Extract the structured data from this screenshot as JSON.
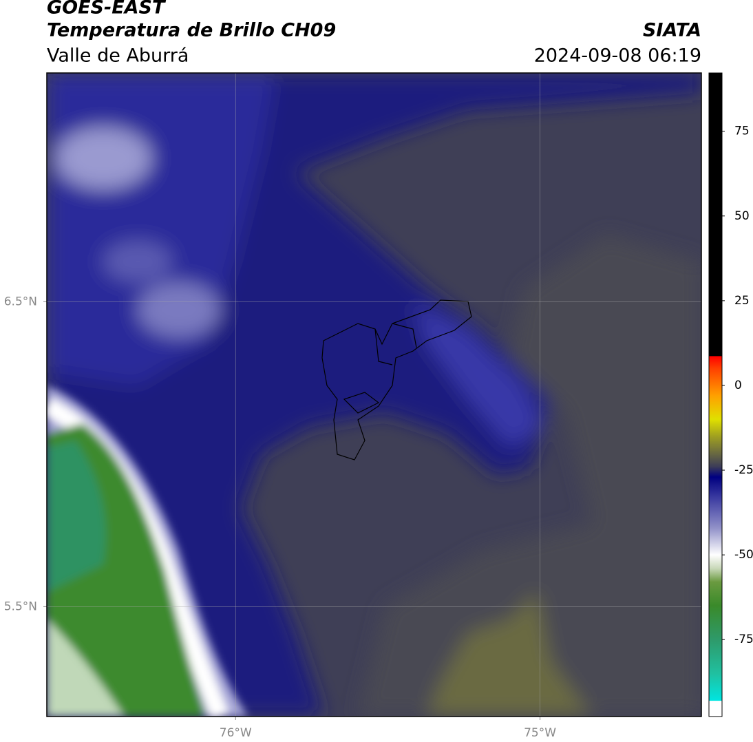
{
  "chart_data": {
    "type": "map",
    "title": "GOES-EAST",
    "subtitle": "Temperatura de Brillo CH09",
    "source": "SIATA",
    "region": "Valle de Aburrá",
    "datetime": "2024-09-08 06:19",
    "xlim": [
      -76.62,
      -74.47
    ],
    "ylim": [
      5.14,
      7.25
    ],
    "xticks": [
      {
        "value": -76,
        "label": "76°W"
      },
      {
        "value": -75,
        "label": "75°W"
      }
    ],
    "yticks": [
      {
        "value": 5.5,
        "label": "5.5°N"
      },
      {
        "value": 6.5,
        "label": "6.5°N"
      }
    ],
    "grid": true,
    "colorbar": {
      "lim": [
        -97.7,
        92.2
      ],
      "ticks": [
        -75,
        -50,
        -25,
        0,
        25,
        50,
        75
      ],
      "colormap": [
        {
          "value": -97.7,
          "color": "#ffffff"
        },
        {
          "value": -93.1,
          "color": "#ffffff"
        },
        {
          "value": -93,
          "color": "#00e5e0"
        },
        {
          "value": -85,
          "color": "#20c0a0"
        },
        {
          "value": -75,
          "color": "#2e9a6a"
        },
        {
          "value": -65,
          "color": "#3a8a2a"
        },
        {
          "value": -58,
          "color": "#6a9a40"
        },
        {
          "value": -54,
          "color": "#c8d8b8"
        },
        {
          "value": -50,
          "color": "#ffffff"
        },
        {
          "value": -42,
          "color": "#9090c8"
        },
        {
          "value": -33,
          "color": "#3a3aa0"
        },
        {
          "value": -27,
          "color": "#000080"
        },
        {
          "value": -24,
          "color": "#3c3c58"
        },
        {
          "value": -20,
          "color": "#6a6a40"
        },
        {
          "value": -15,
          "color": "#a0a020"
        },
        {
          "value": -10,
          "color": "#e0e000"
        },
        {
          "value": -3,
          "color": "#ffa000"
        },
        {
          "value": 5,
          "color": "#ff4000"
        },
        {
          "value": 8.6,
          "color": "#ff0000"
        },
        {
          "value": 8.7,
          "color": "#000000"
        },
        {
          "value": 92.2,
          "color": "#000000"
        }
      ]
    }
  }
}
